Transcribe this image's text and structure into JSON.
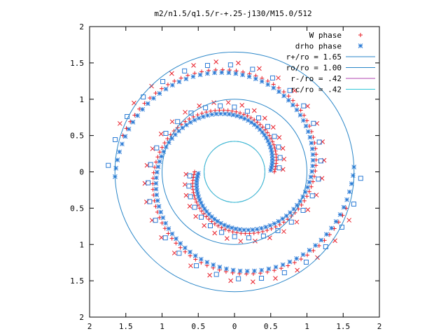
{
  "chart_data": {
    "type": "scatter",
    "title": "m2/n1.5/q1.5/r-+.25-j130/M15.0/512",
    "xlabel": "",
    "ylabel": "",
    "xlim": [
      -2,
      2
    ],
    "ylim": [
      -2,
      2
    ],
    "x_tick_labels": [
      "2",
      "1.5",
      "1",
      "0.5",
      "0",
      "0.5",
      "1",
      "1.5",
      "2"
    ],
    "y_tick_labels": [
      "2",
      "1.5",
      "1",
      "0.5",
      "0",
      "0.5",
      "1",
      "1.5",
      "2"
    ],
    "grid": false,
    "legend_position": "top-right",
    "series": [
      {
        "name": "W phase",
        "kind": "points",
        "marker": "plus",
        "color": "#e8202a",
        "arms": [
          {
            "phase0_deg": 180,
            "r_start": 0.55,
            "r_end": 1.62,
            "turns": 0.95
          },
          {
            "phase0_deg": 0,
            "r_start": 0.55,
            "r_end": 1.62,
            "turns": 0.95
          }
        ],
        "extra_marker": "cross"
      },
      {
        "name": "drho phase",
        "kind": "points",
        "marker": "star",
        "color": "#2b7bd6",
        "arms": [
          {
            "phase0_deg": 180,
            "r_start": 0.5,
            "r_end": 1.65,
            "turns": 1.0
          },
          {
            "phase0_deg": 0,
            "r_start": 0.5,
            "r_end": 1.65,
            "turns": 1.0
          }
        ],
        "extra_marker": "square"
      },
      {
        "name": "r+/ro = 1.65",
        "kind": "circle",
        "radius": 1.65,
        "color": "#2a86c8"
      },
      {
        "name": "ro/ro = 1.00",
        "kind": "circle",
        "radius": 1.0,
        "color": "#2a86c8"
      },
      {
        "name": "r-/ro =  .42",
        "kind": "circle",
        "radius": 0.42,
        "color": "#b040b0"
      },
      {
        "name": "rc/ro =  .42",
        "kind": "circle",
        "radius": 0.42,
        "color": "#30c8d8"
      }
    ]
  }
}
